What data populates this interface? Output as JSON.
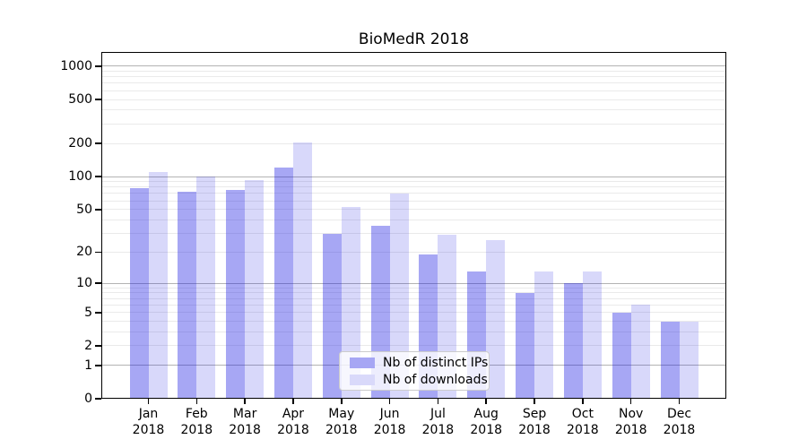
{
  "title": "BioMedR 2018",
  "chart_data": {
    "type": "bar",
    "title": "BioMedR 2018",
    "xlabel": "",
    "ylabel": "",
    "categories": [
      "Jan",
      "Feb",
      "Mar",
      "Apr",
      "May",
      "Jun",
      "Jul",
      "Aug",
      "Sep",
      "Oct",
      "Nov",
      "Dec"
    ],
    "year_label": "2018",
    "series": [
      {
        "name": "Nb of distinct IPs",
        "key": "distinct-ips",
        "fill": "rgba(15,15,225,0.37)",
        "legend_color": "#a6a6f4",
        "values": [
          78,
          72,
          75,
          120,
          30,
          35,
          19,
          13,
          8,
          10,
          5,
          4
        ]
      },
      {
        "name": "Nb of downloads",
        "key": "downloads",
        "fill": "rgba(15,15,225,0.16)",
        "legend_color": "#d9d9fa",
        "values": [
          110,
          100,
          92,
          205,
          53,
          70,
          29,
          26,
          13,
          13,
          6,
          4
        ]
      }
    ],
    "y_axis": {
      "scale": "log10(1+v)",
      "ticks": [
        0,
        1,
        2,
        5,
        10,
        20,
        50,
        100,
        200,
        500,
        1000
      ],
      "major_gridlines": [
        1,
        10,
        100,
        1000
      ],
      "minor_gridlines": [
        2,
        3,
        4,
        5,
        6,
        7,
        8,
        9,
        20,
        30,
        40,
        50,
        60,
        70,
        80,
        90,
        200,
        300,
        400,
        500,
        600,
        700,
        800,
        900
      ],
      "ylim": [
        0,
        1343
      ]
    },
    "legend": {
      "position": "lower-center",
      "entries": [
        "Nb of distinct IPs",
        "Nb of downloads"
      ]
    },
    "grid": true
  }
}
